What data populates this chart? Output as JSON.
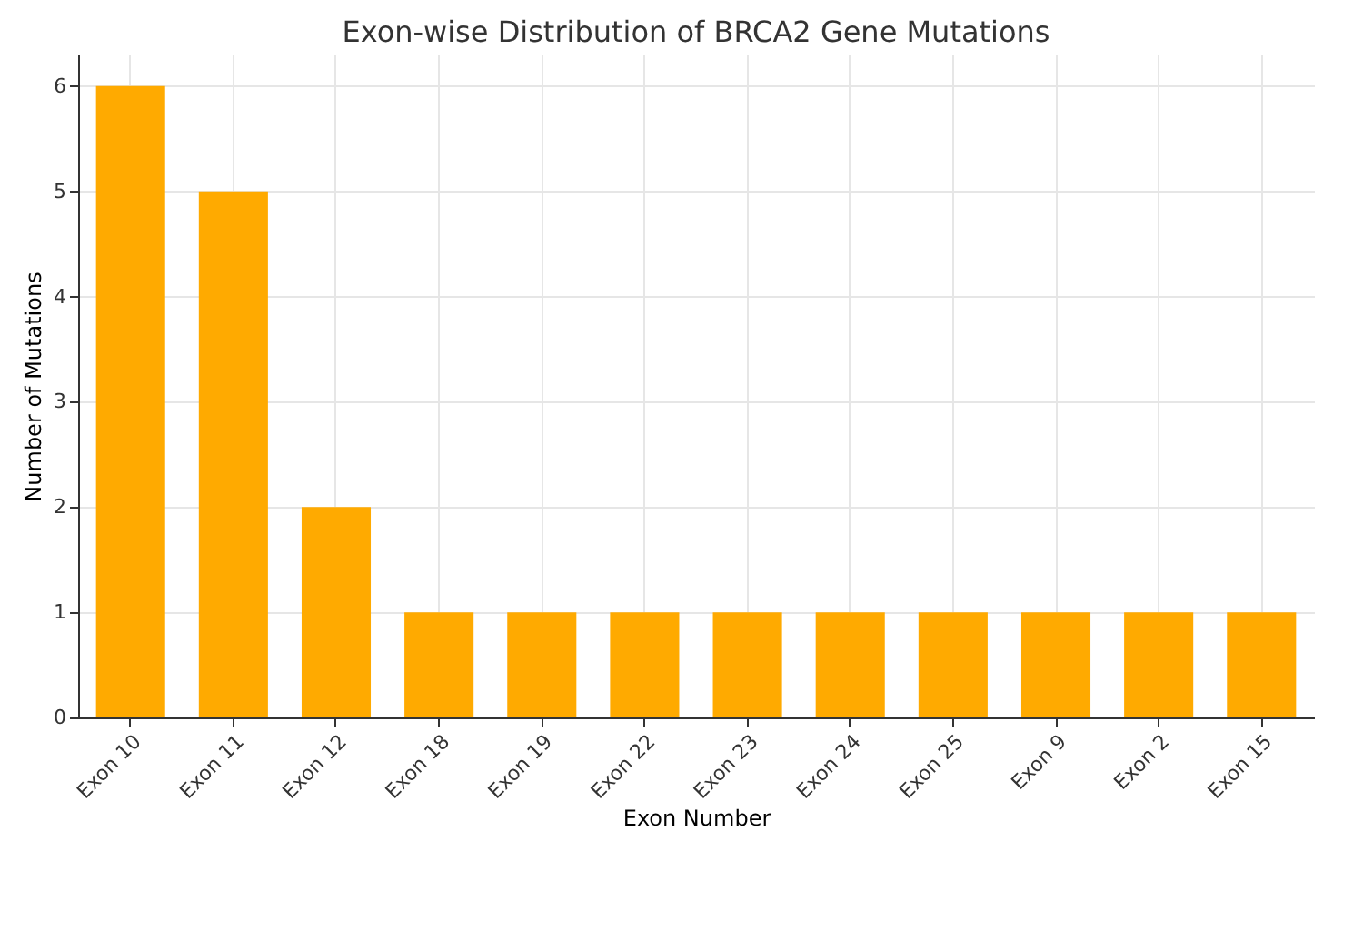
{
  "chart_data": {
    "type": "bar",
    "title": "Exon-wise Distribution of BRCA2 Gene Mutations",
    "xlabel": "Exon Number",
    "ylabel": "Number of Mutations",
    "categories": [
      "Exon 10",
      "Exon 11",
      "Exon 12",
      "Exon 18",
      "Exon 19",
      "Exon 22",
      "Exon 23",
      "Exon 24",
      "Exon 25",
      "Exon 9",
      "Exon 2",
      "Exon 15"
    ],
    "values": [
      6,
      5,
      2,
      1,
      1,
      1,
      1,
      1,
      1,
      1,
      1,
      1
    ],
    "color": "#ffaa00",
    "ylim": [
      0,
      6.3
    ],
    "yticks": [
      0,
      1,
      2,
      3,
      4,
      5,
      6
    ],
    "grid": true
  }
}
